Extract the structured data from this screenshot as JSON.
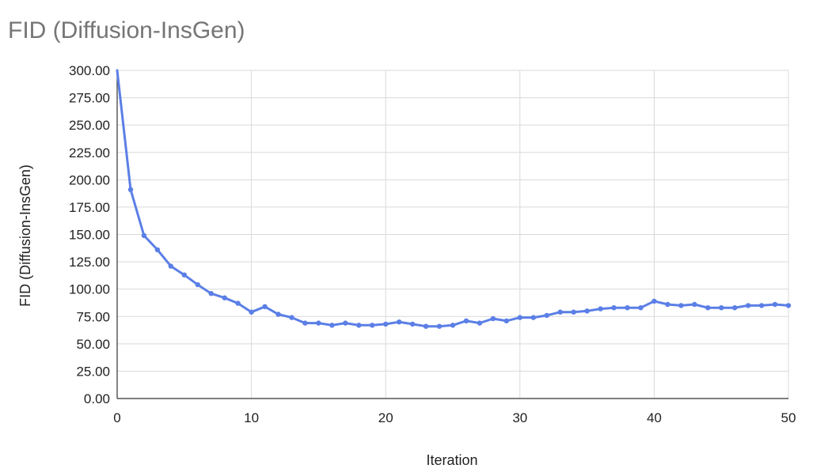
{
  "chart_data": {
    "type": "line",
    "title": "FID (Diffusion-InsGen)",
    "xlabel": "Iteration",
    "ylabel": "FID (Diffusion-InsGen)",
    "xlim": [
      0,
      50
    ],
    "ylim": [
      0,
      300
    ],
    "x_ticks": [
      "0",
      "10",
      "20",
      "30",
      "40",
      "50"
    ],
    "y_ticks": [
      "0.00",
      "25.00",
      "50.00",
      "75.00",
      "100.00",
      "125.00",
      "150.00",
      "175.00",
      "200.00",
      "225.00",
      "250.00",
      "275.00",
      "300.00"
    ],
    "grid": true,
    "legend": "none",
    "series": [
      {
        "color": "#5b7fe6",
        "x": [
          0,
          1,
          2,
          3,
          4,
          5,
          6,
          7,
          8,
          9,
          10,
          11,
          12,
          13,
          14,
          15,
          16,
          17,
          18,
          19,
          20,
          21,
          22,
          23,
          24,
          25,
          26,
          27,
          28,
          29,
          30,
          31,
          32,
          33,
          34,
          35,
          36,
          37,
          38,
          39,
          40,
          41,
          42,
          43,
          44,
          45,
          46,
          47,
          48,
          49,
          50
        ],
        "values": [
          300,
          191,
          149,
          136,
          121,
          113,
          104,
          96,
          92,
          87,
          79,
          84,
          77,
          74,
          69,
          69,
          67,
          69,
          67,
          67,
          68,
          70,
          68,
          66,
          66,
          67,
          71,
          69,
          73,
          71,
          74,
          74,
          76,
          79,
          79,
          80,
          82,
          83,
          83,
          83,
          89,
          86,
          85,
          86,
          83,
          83,
          83,
          85,
          85,
          86,
          85
        ]
      }
    ]
  }
}
